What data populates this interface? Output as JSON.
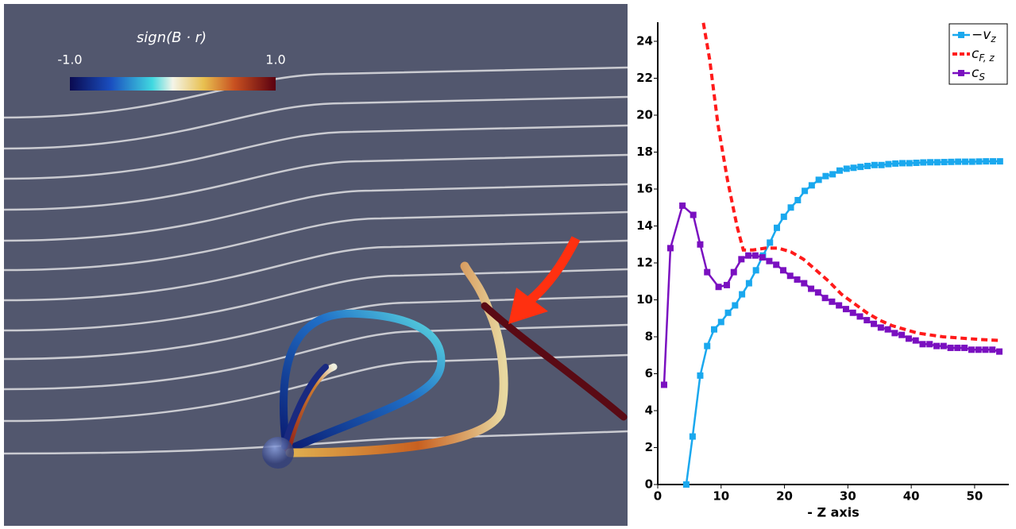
{
  "visualization": {
    "colorbar": {
      "title": "sign(B · r)",
      "ticks": [
        {
          "value": -1,
          "label": "-1.0"
        },
        {
          "value": 1,
          "label": "1.0"
        }
      ]
    }
  },
  "chart_data": {
    "type": "line",
    "x_label": "- Z axis",
    "xlim": [
      0,
      55.4
    ],
    "ylim": [
      0,
      25
    ],
    "xticks": [
      0,
      10,
      20,
      30,
      40,
      50
    ],
    "yticks": [
      0,
      2,
      4,
      6,
      8,
      10,
      12,
      14,
      16,
      18,
      20,
      22,
      24
    ],
    "legend": "upper right",
    "series": [
      {
        "name": "−v",
        "subscript": "z",
        "color": "#1aa8ee",
        "marker": "square",
        "dashed": false,
        "x": [
          4.5,
          5.5,
          6.7,
          7.8,
          8.9,
          10,
          11.1,
          12.2,
          13.3,
          14.4,
          15.5,
          16.6,
          17.7,
          18.8,
          19.9,
          21,
          22.1,
          23.2,
          24.3,
          25.4,
          26.5,
          27.6,
          28.7,
          29.8,
          30.9,
          32,
          33.1,
          34.2,
          35.3,
          36.4,
          37.5,
          38.6,
          39.7,
          40.8,
          41.9,
          43,
          44.1,
          45.2,
          46.3,
          47.4,
          48.5,
          49.6,
          50.7,
          51.8,
          52.9,
          54
        ],
        "values": [
          0,
          2.6,
          5.9,
          7.5,
          8.4,
          8.8,
          9.3,
          9.7,
          10.3,
          10.9,
          11.6,
          12.4,
          13.1,
          13.9,
          14.5,
          15.0,
          15.4,
          15.9,
          16.2,
          16.5,
          16.7,
          16.8,
          17.0,
          17.1,
          17.15,
          17.2,
          17.25,
          17.3,
          17.3,
          17.35,
          17.38,
          17.4,
          17.4,
          17.42,
          17.44,
          17.45,
          17.45,
          17.46,
          17.47,
          17.48,
          17.48,
          17.48,
          17.49,
          17.5,
          17.5,
          17.5
        ]
      },
      {
        "name": "c",
        "subscript": "F, z",
        "color": "#ff1a1a",
        "marker": "none",
        "dashed": true,
        "x": [
          7.2,
          8.2,
          9.5,
          11,
          12.5,
          13.5,
          15,
          17,
          19,
          21,
          23,
          25,
          27,
          29,
          31,
          33,
          35,
          37,
          39,
          41,
          43,
          45,
          47,
          49,
          51,
          54
        ],
        "values": [
          25,
          23,
          19.5,
          16.5,
          14,
          12.7,
          12.7,
          12.8,
          12.8,
          12.6,
          12.2,
          11.6,
          11.0,
          10.3,
          9.8,
          9.3,
          8.9,
          8.6,
          8.4,
          8.2,
          8.1,
          8.0,
          7.95,
          7.9,
          7.85,
          7.8
        ]
      },
      {
        "name": "c",
        "subscript": "S",
        "color": "#7a10c0",
        "marker": "square",
        "dashed": false,
        "x": [
          1,
          2,
          3.9,
          5.6,
          6.7,
          7.8,
          9.6,
          10.9,
          12,
          13.2,
          14.3,
          15.4,
          16.5,
          17.6,
          18.7,
          19.8,
          20.9,
          22,
          23.1,
          24.2,
          25.3,
          26.4,
          27.5,
          28.6,
          29.7,
          30.8,
          31.9,
          33,
          34.1,
          35.2,
          36.3,
          37.4,
          38.5,
          39.6,
          40.7,
          41.8,
          42.9,
          44,
          45.1,
          46.2,
          47.3,
          48.4,
          49.5,
          50.6,
          51.7,
          52.8,
          53.9
        ],
        "values": [
          5.4,
          12.8,
          15.1,
          14.6,
          13.0,
          11.5,
          10.7,
          10.8,
          11.5,
          12.2,
          12.4,
          12.4,
          12.3,
          12.1,
          11.9,
          11.6,
          11.3,
          11.1,
          10.9,
          10.6,
          10.4,
          10.1,
          9.9,
          9.7,
          9.5,
          9.3,
          9.1,
          8.9,
          8.7,
          8.5,
          8.4,
          8.2,
          8.1,
          7.9,
          7.8,
          7.6,
          7.6,
          7.5,
          7.5,
          7.4,
          7.4,
          7.4,
          7.3,
          7.3,
          7.3,
          7.3,
          7.2
        ]
      }
    ]
  }
}
